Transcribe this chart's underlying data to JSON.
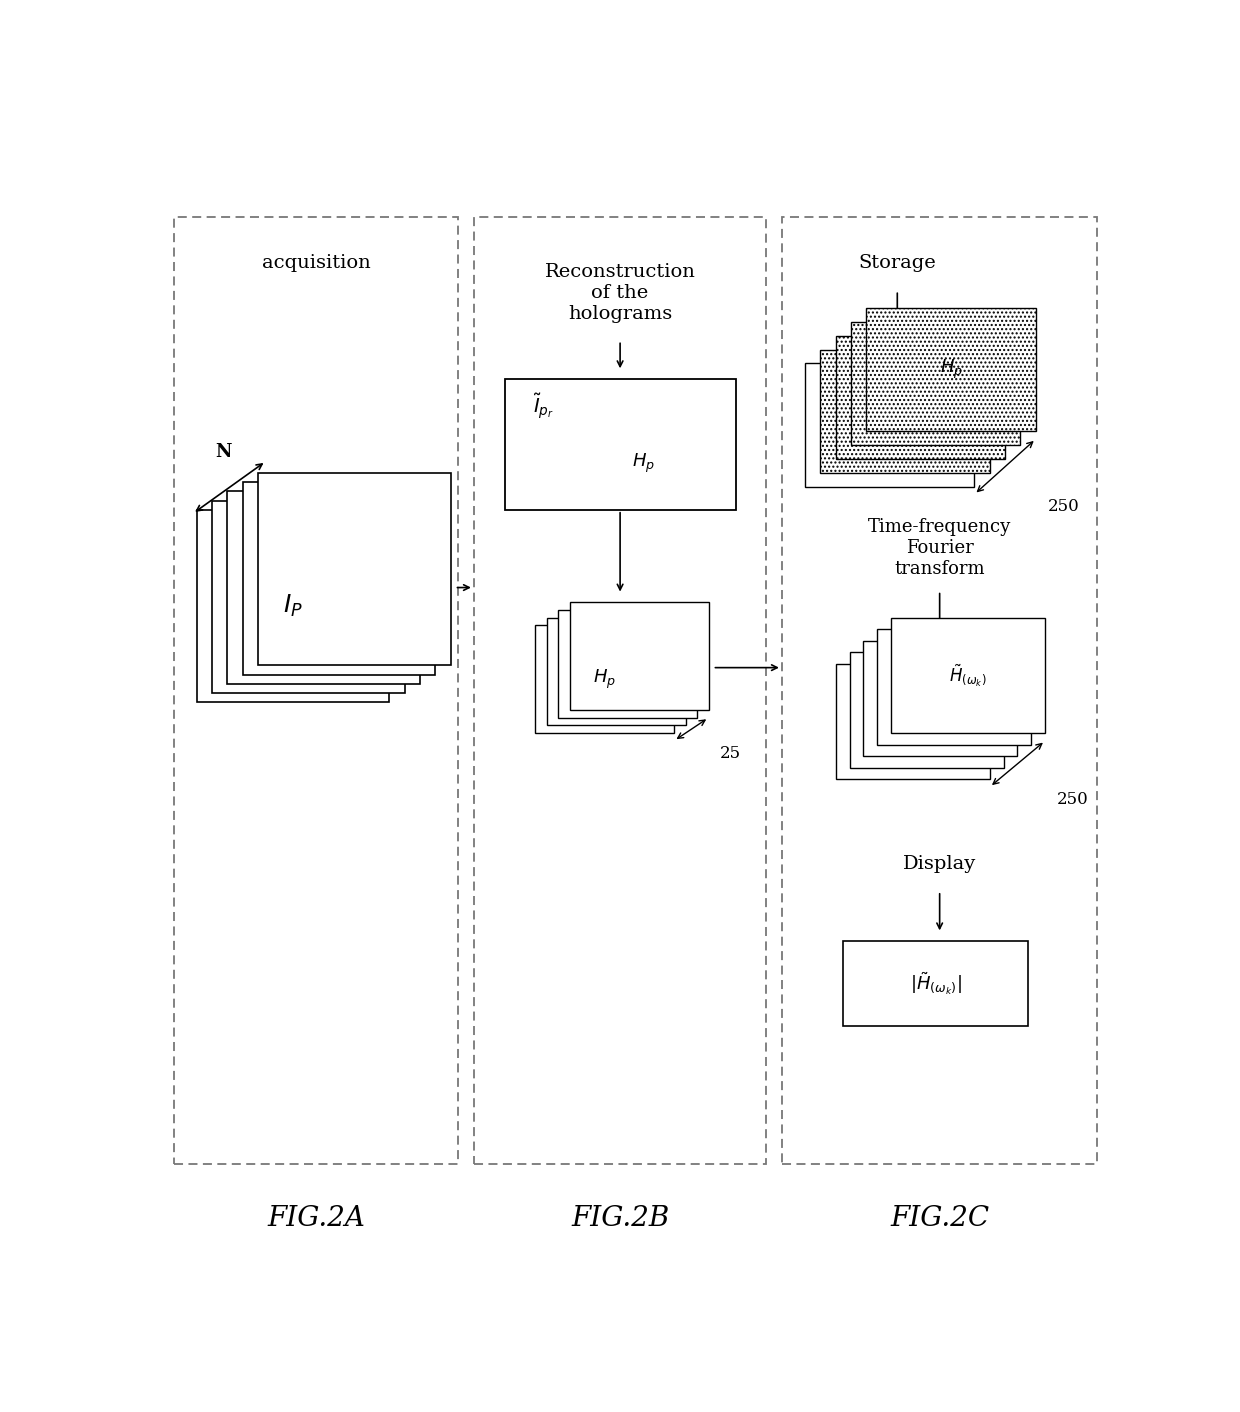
{
  "bg_color": "#ffffff",
  "fig_label_a": "FIG.2A",
  "fig_label_b": "FIG.2B",
  "fig_label_c": "FIG.2C",
  "label_acquisition": "acquisition",
  "label_reconstruction": "Reconstruction\nof the\nholograms",
  "label_storage": "Storage",
  "label_tf": "Time-frequency\nFourier\ntransform",
  "label_display": "Display",
  "label_N": "N",
  "label_IP": "$I_P$",
  "label_Ipr": "$\\tilde{I}_{p_r}$",
  "label_Hp_dashed": "$H_p$",
  "label_Hp_stack": "$H_p$",
  "label_Hp_storage": "$H_p$",
  "label_25": "25",
  "label_250a": "250",
  "label_Homk": "$\\tilde{H}_{(\\omega_k)}$",
  "label_250b": "250",
  "label_absHomk": "$|\\tilde{H}_{(\\omega_k)}|$",
  "dashed_color": "#777777",
  "box_edge": "#222222"
}
